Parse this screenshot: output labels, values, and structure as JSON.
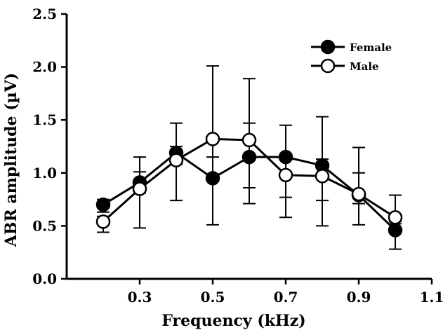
{
  "chart_data": {
    "type": "line",
    "xlabel": "Frequency (kHz)",
    "ylabel": "ABR amplitude (µV)",
    "xlim": [
      0.1,
      1.1
    ],
    "ylim": [
      0.0,
      2.5
    ],
    "xticks": [
      "0.3",
      "0.5",
      "0.7",
      "0.9",
      "1.1"
    ],
    "yticks": [
      "0.0",
      "0.5",
      "1.0",
      "1.5",
      "2.0",
      "2.5"
    ],
    "x": [
      0.2,
      0.3,
      0.4,
      0.5,
      0.6,
      0.7,
      0.8,
      0.9,
      1.0
    ],
    "series": [
      {
        "name": "Female",
        "marker": "filled-circle",
        "color": "#000000",
        "values": [
          0.7,
          0.91,
          1.19,
          0.95,
          1.15,
          1.15,
          1.07,
          0.79,
          0.46
        ],
        "error_low": [
          0.63,
          0.81,
          1.08,
          0.51,
          0.71,
          0.58,
          0.5,
          0.51,
          0.28
        ],
        "error_high": [
          0.75,
          1.15,
          1.47,
          1.15,
          1.47,
          1.45,
          1.53,
          1.0,
          0.54
        ]
      },
      {
        "name": "Male",
        "marker": "open-circle",
        "color": "#000000",
        "values": [
          0.54,
          0.85,
          1.12,
          1.32,
          1.31,
          0.98,
          0.97,
          0.8,
          0.58
        ],
        "error_low": [
          0.44,
          0.48,
          0.74,
          0.99,
          0.86,
          0.77,
          0.74,
          0.71,
          0.52
        ],
        "error_high": [
          0.59,
          1.01,
          1.25,
          2.01,
          1.89,
          1.13,
          1.13,
          1.24,
          0.79
        ]
      }
    ],
    "legend": {
      "placement": "top-right"
    },
    "grid": false
  }
}
